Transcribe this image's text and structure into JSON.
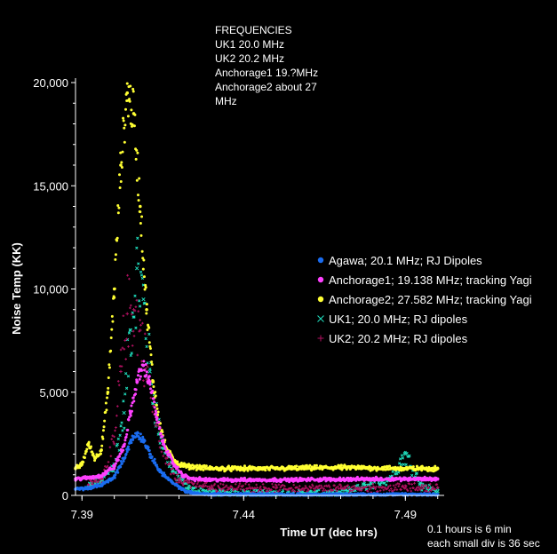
{
  "chart_data": {
    "type": "scatter",
    "xlabel": "Time UT (dec hrs)",
    "ylabel": "Noise Temp (KK)",
    "xlim": [
      7.388,
      7.502
    ],
    "ylim": [
      0,
      21000
    ],
    "x_ticks": [
      7.39,
      7.44,
      7.49
    ],
    "x_tick_labels": [
      "7.39",
      "7.44",
      "7.49"
    ],
    "y_ticks": [
      0,
      5000,
      10000,
      15000,
      20000
    ],
    "y_tick_labels": [
      "0",
      "5,000",
      "10,000",
      "15,000",
      "20,000"
    ],
    "grid": false,
    "legend_position": "right",
    "series": [
      {
        "name": "Agawa; 20.1 MHz; RJ Dipoles",
        "color": "#1a6cf0",
        "marker": "dot",
        "x": [
          7.388,
          7.392,
          7.396,
          7.4,
          7.403,
          7.405,
          7.407,
          7.409,
          7.411,
          7.414,
          7.418,
          7.422,
          7.426,
          7.43,
          7.45,
          7.47,
          7.49,
          7.5
        ],
        "y": [
          300,
          350,
          500,
          900,
          1800,
          2600,
          3000,
          2700,
          2000,
          1200,
          600,
          200,
          80,
          50,
          40,
          40,
          40,
          40
        ]
      },
      {
        "name": "Anchorage1; 19.138 MHz; tracking Yagi",
        "color": "#ff40ff",
        "marker": "dot",
        "x": [
          7.388,
          7.392,
          7.396,
          7.4,
          7.403,
          7.405,
          7.407,
          7.409,
          7.411,
          7.413,
          7.415,
          7.418,
          7.421,
          7.424,
          7.43,
          7.45,
          7.47,
          7.49,
          7.5
        ],
        "y": [
          800,
          850,
          950,
          1400,
          2400,
          4000,
          5500,
          6300,
          5500,
          3800,
          2600,
          1600,
          1000,
          800,
          750,
          750,
          780,
          800,
          800
        ]
      },
      {
        "name": "Anchorage2; 27.582 MHz; tracking Yagi",
        "color": "#ffff33",
        "marker": "dot",
        "x": [
          7.388,
          7.39,
          7.392,
          7.394,
          7.396,
          7.398,
          7.4,
          7.402,
          7.404,
          7.406,
          7.408,
          7.41,
          7.412,
          7.414,
          7.416,
          7.418,
          7.42,
          7.423,
          7.43,
          7.45,
          7.47,
          7.49,
          7.5
        ],
        "y": [
          1300,
          1500,
          2500,
          1800,
          2200,
          5000,
          10000,
          16000,
          19500,
          18500,
          14000,
          9000,
          5500,
          3500,
          2300,
          1800,
          1500,
          1400,
          1300,
          1300,
          1350,
          1300,
          1300
        ]
      },
      {
        "name": "UK1; 20.0 MHz; RJ dipoles",
        "color": "#20e0c0",
        "marker": "x",
        "x": [
          7.392,
          7.396,
          7.4,
          7.403,
          7.405,
          7.407,
          7.409,
          7.411,
          7.414,
          7.418,
          7.423,
          7.43,
          7.45,
          7.47,
          7.485,
          7.49,
          7.495,
          7.5
        ],
        "y": [
          400,
          700,
          1500,
          4000,
          8000,
          11000,
          9500,
          6000,
          3000,
          1200,
          300,
          150,
          100,
          100,
          800,
          2000,
          500,
          200
        ]
      },
      {
        "name": "UK2; 20.2 MHz; RJ dipoles",
        "color": "#b01060",
        "marker": "plus",
        "x": [
          7.392,
          7.396,
          7.4,
          7.402,
          7.404,
          7.406,
          7.408,
          7.41,
          7.413,
          7.416,
          7.42,
          7.43,
          7.45,
          7.47,
          7.49,
          7.5
        ],
        "y": [
          500,
          800,
          2500,
          6000,
          8800,
          9000,
          8000,
          6000,
          3500,
          1800,
          700,
          400,
          350,
          350,
          380,
          380
        ]
      }
    ],
    "annotations": {
      "frequencies": [
        "FREQUENCIES",
        "UK1 20.0 MHz",
        "UK2 20.2 MHz",
        "Anchorage1 19.?MHz",
        "Anchorage2 about 27",
        "MHz"
      ],
      "note_line1": "0.1 hours is 6 min",
      "note_line2": "each small div is 36 sec"
    }
  }
}
